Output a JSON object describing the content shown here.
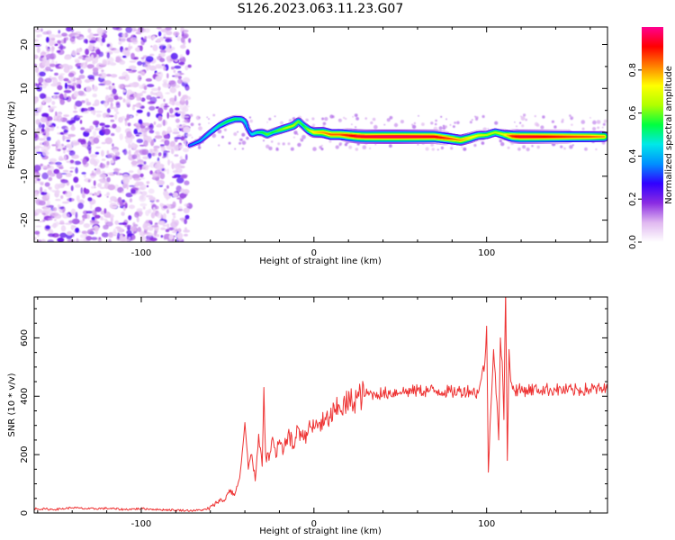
{
  "title": "S126.2023.063.11.23.G07",
  "chart_data": [
    {
      "type": "heatmap",
      "xlabel": "Height of straight line (km)",
      "ylabel": "Frequency (Hz)",
      "xlim": [
        -162,
        170
      ],
      "ylim": [
        -25,
        24
      ],
      "xticks": [
        -100,
        0,
        100
      ],
      "xtick_labels": [
        "-100",
        "0",
        "100"
      ],
      "yticks": [
        20,
        10,
        0,
        -10,
        -20
      ],
      "ytick_labels": [
        "20",
        "10",
        "0",
        "-10",
        "-20"
      ],
      "noise_region": {
        "x": [
          -162,
          -72
        ],
        "y": [
          -25,
          24
        ],
        "amplitude_range": [
          0.05,
          0.25
        ]
      },
      "signal_ridge": {
        "x": [
          -72,
          -66,
          -60,
          -55,
          -50,
          -46,
          -42,
          -40,
          -38,
          -36,
          -33,
          -30,
          -27,
          -24,
          -20,
          -16,
          -12,
          -9,
          -6,
          -3,
          0,
          5,
          10,
          15,
          20,
          25,
          30,
          40,
          50,
          60,
          70,
          80,
          85,
          90,
          95,
          100,
          105,
          110,
          115,
          120,
          130,
          140,
          150,
          160,
          168
        ],
        "y": [
          -3,
          -2,
          0,
          1.5,
          2.5,
          3,
          3,
          2.5,
          0.5,
          -0.5,
          0,
          0,
          -0.5,
          0,
          0.5,
          1,
          1.5,
          2.5,
          1.5,
          0.5,
          0,
          0,
          -0.5,
          -0.5,
          -0.7,
          -0.9,
          -1,
          -1,
          -1,
          -1,
          -1,
          -1.5,
          -1.8,
          -1.3,
          -0.7,
          -0.6,
          0,
          -0.5,
          -0.9,
          -1,
          -1,
          -1,
          -1,
          -1,
          -1
        ],
        "amplitude": [
          0.3,
          0.35,
          0.4,
          0.45,
          0.5,
          0.5,
          0.45,
          0.4,
          0.3,
          0.4,
          0.45,
          0.5,
          0.55,
          0.5,
          0.55,
          0.6,
          0.6,
          0.55,
          0.5,
          0.6,
          0.7,
          0.75,
          0.8,
          0.8,
          0.85,
          0.9,
          0.9,
          0.92,
          0.92,
          0.9,
          0.88,
          0.8,
          0.75,
          0.7,
          0.65,
          0.6,
          0.6,
          0.65,
          0.85,
          0.9,
          0.88,
          0.85,
          0.82,
          0.8,
          0.75
        ]
      },
      "colorbar": {
        "label": "Normalized spectral amplitude",
        "range": [
          0,
          1
        ],
        "ticks": [
          0.0,
          0.2,
          0.4,
          0.6,
          0.8
        ],
        "tick_labels": [
          "0.0",
          "0.2",
          "0.4",
          "0.6",
          "0.8"
        ],
        "colors": [
          "#ffffff",
          "#e0b8f0",
          "#8a2be2",
          "#3000ff",
          "#0090ff",
          "#00e8e8",
          "#00ff40",
          "#b0ff00",
          "#ffff00",
          "#ff8000",
          "#ff0000",
          "#ff0090"
        ]
      },
      "grid": false,
      "legend": "none"
    },
    {
      "type": "line",
      "xlabel": "Height of straight line (km)",
      "ylabel": "SNR (10 * v/v)",
      "xlim": [
        -162,
        170
      ],
      "ylim": [
        0,
        740
      ],
      "xticks": [
        -100,
        0,
        100
      ],
      "xtick_labels": [
        "-100",
        "0",
        "100"
      ],
      "yticks": [
        0,
        200,
        400,
        600
      ],
      "ytick_labels": [
        "0",
        "200",
        "400",
        "600"
      ],
      "line_color": "#ee3333",
      "series": [
        {
          "x": [
            -162,
            -150,
            -140,
            -130,
            -120,
            -110,
            -100,
            -90,
            -80,
            -70,
            -62,
            -58,
            -55,
            -52,
            -49,
            -46,
            -43,
            -41,
            -40,
            -38,
            -36,
            -34,
            -32,
            -30,
            -29,
            -28,
            -26,
            -24,
            -22,
            -20,
            -18,
            -15,
            -12,
            -9,
            -6,
            -3,
            0,
            3,
            6,
            9,
            12,
            15,
            18,
            22,
            26,
            30,
            35,
            40,
            50,
            60,
            70,
            80,
            90,
            95,
            97,
            99,
            100,
            101,
            102,
            104,
            106,
            107,
            108,
            109,
            110,
            111,
            112,
            113,
            114,
            115,
            120,
            130,
            140,
            150,
            160,
            170
          ],
          "y": [
            15,
            12,
            18,
            14,
            16,
            12,
            15,
            12,
            10,
            8,
            12,
            25,
            45,
            40,
            80,
            60,
            120,
            240,
            310,
            150,
            200,
            110,
            270,
            160,
            430,
            200,
            180,
            260,
            190,
            250,
            200,
            270,
            230,
            290,
            250,
            300,
            290,
            310,
            305,
            330,
            345,
            360,
            370,
            385,
            400,
            405,
            410,
            410,
            415,
            418,
            420,
            415,
            420,
            410,
            460,
            520,
            640,
            140,
            300,
            560,
            380,
            250,
            600,
            520,
            320,
            760,
            180,
            560,
            450,
            425,
            420,
            425,
            422,
            420,
            425,
            422
          ]
        }
      ],
      "grid": false,
      "legend": "none"
    }
  ]
}
